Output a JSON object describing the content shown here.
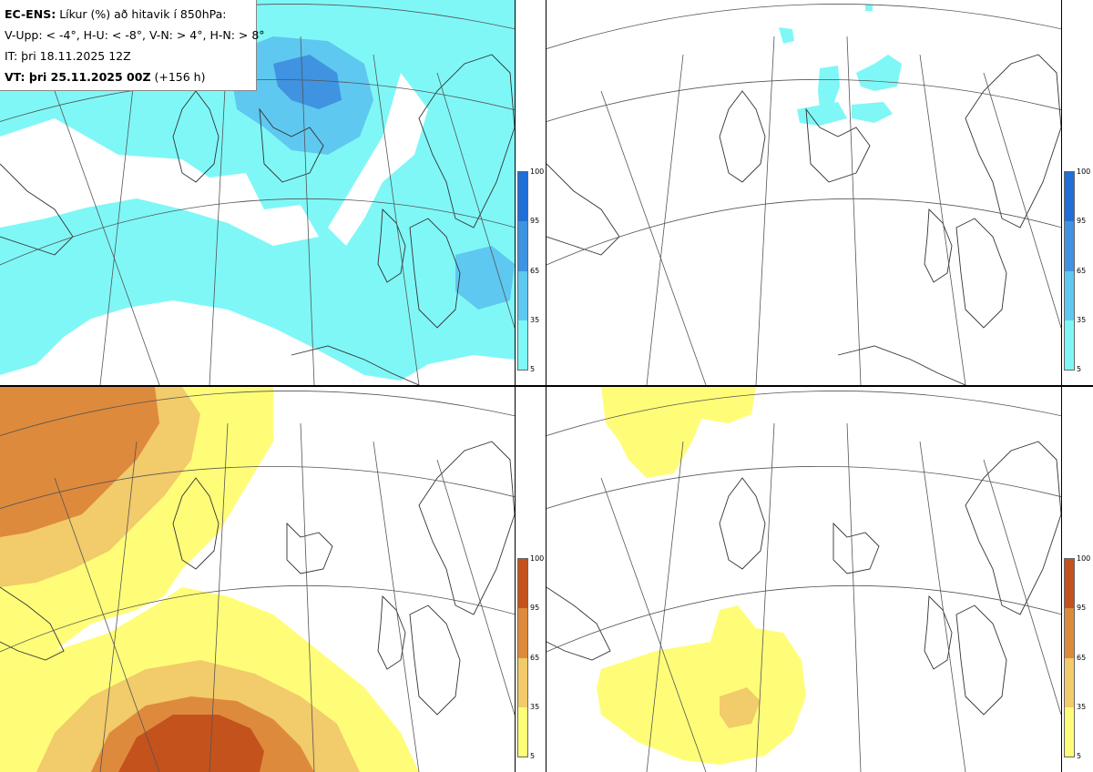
{
  "header": {
    "model": "EC-ENS:",
    "title": "Líkur (%) að hitavik í 850hPa:",
    "legend_def": "V-Upp: < -4°, H-U: < -8°, V-N: > 4°, H-N: > 8°",
    "init_time": "IT: þri 18.11.2025 12Z",
    "valid_label": "VT: þri 25.11.2025 00Z",
    "lead": "(+156 h)"
  },
  "colorbar": {
    "ticks": [
      "100",
      "95",
      "65",
      "35",
      "5"
    ],
    "cold_colors": [
      "#1f6fd6",
      "#3f93e0",
      "#5ec8f0",
      "#7ff7f7"
    ],
    "warm_colors": [
      "#c4521c",
      "#de8a3c",
      "#f2cb6a",
      "#fffd78"
    ]
  },
  "panels": [
    {
      "id": "top-left",
      "variable": "V-Upp",
      "scheme": "cold"
    },
    {
      "id": "top-right",
      "variable": "H-U",
      "scheme": "cold"
    },
    {
      "id": "bottom-left",
      "variable": "V-N",
      "scheme": "warm"
    },
    {
      "id": "bottom-right",
      "variable": "H-N",
      "scheme": "warm"
    }
  ]
}
